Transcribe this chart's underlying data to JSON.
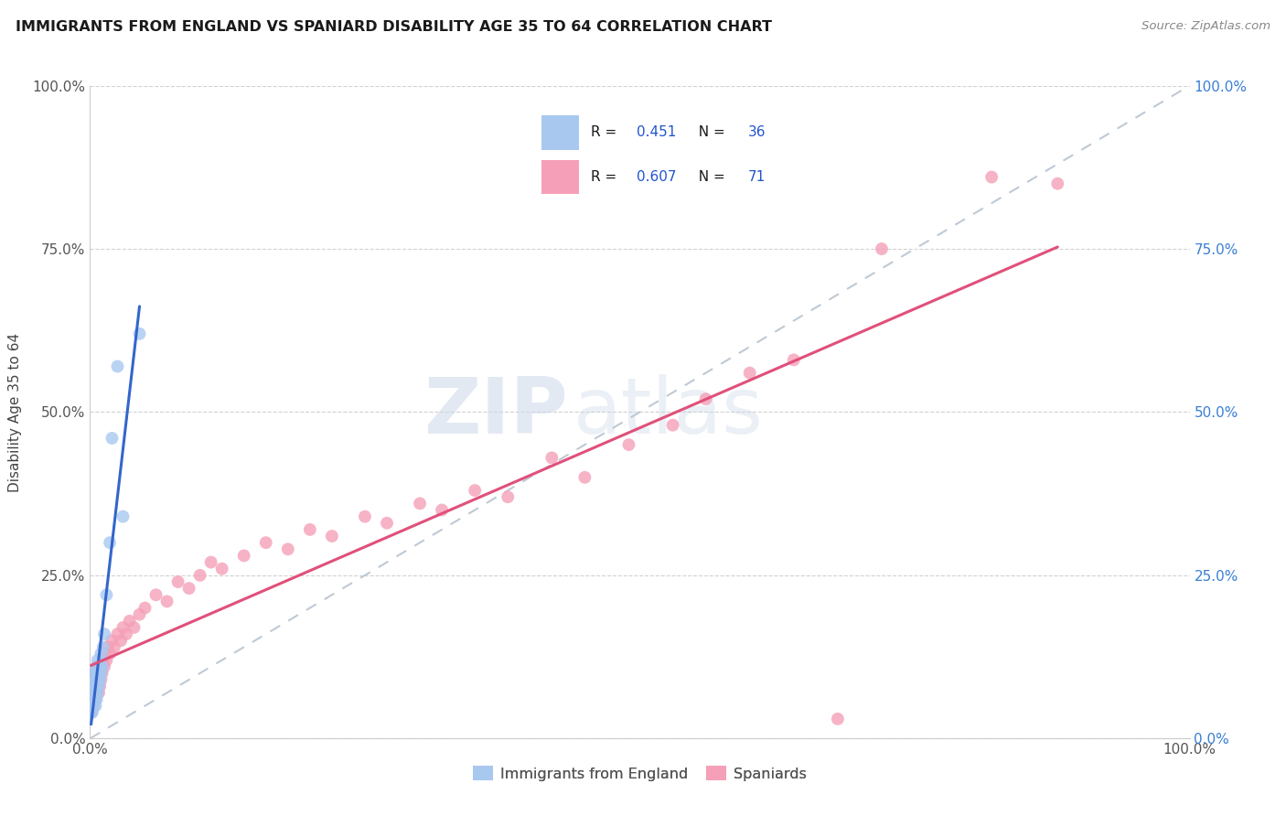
{
  "title": "IMMIGRANTS FROM ENGLAND VS SPANIARD DISABILITY AGE 35 TO 64 CORRELATION CHART",
  "source": "Source: ZipAtlas.com",
  "ylabel": "Disability Age 35 to 64",
  "xmin": 0.0,
  "xmax": 1.0,
  "ymin": 0.0,
  "ymax": 1.0,
  "ytick_positions": [
    0.0,
    0.25,
    0.5,
    0.75,
    1.0
  ],
  "ytick_labels": [
    "0.0%",
    "25.0%",
    "50.0%",
    "75.0%",
    "100.0%"
  ],
  "england_R": "0.451",
  "england_N": "36",
  "spaniard_R": "0.607",
  "spaniard_N": "71",
  "england_color": "#a8c8f0",
  "spaniard_color": "#f5a0b8",
  "england_line_color": "#3366cc",
  "spaniard_line_color": "#e0507a",
  "diagonal_color": "#b8c4d0",
  "watermark_zip": "ZIP",
  "watermark_atlas": "atlas",
  "legend_label_england": "Immigrants from England",
  "legend_label_spaniard": "Spaniards",
  "eng_x": [
    0.001,
    0.001,
    0.002,
    0.002,
    0.002,
    0.003,
    0.003,
    0.003,
    0.003,
    0.004,
    0.004,
    0.004,
    0.005,
    0.005,
    0.005,
    0.006,
    0.006,
    0.006,
    0.007,
    0.007,
    0.007,
    0.008,
    0.008,
    0.009,
    0.009,
    0.01,
    0.01,
    0.011,
    0.012,
    0.013,
    0.015,
    0.018,
    0.02,
    0.025,
    0.03,
    0.045
  ],
  "eng_y": [
    0.04,
    0.05,
    0.04,
    0.055,
    0.07,
    0.05,
    0.06,
    0.08,
    0.1,
    0.06,
    0.07,
    0.09,
    0.05,
    0.07,
    0.1,
    0.06,
    0.08,
    0.11,
    0.07,
    0.09,
    0.12,
    0.08,
    0.1,
    0.09,
    0.11,
    0.1,
    0.13,
    0.11,
    0.14,
    0.16,
    0.22,
    0.3,
    0.46,
    0.57,
    0.34,
    0.62
  ],
  "spa_x": [
    0.001,
    0.001,
    0.002,
    0.002,
    0.003,
    0.003,
    0.003,
    0.004,
    0.004,
    0.004,
    0.005,
    0.005,
    0.005,
    0.006,
    0.006,
    0.006,
    0.007,
    0.007,
    0.008,
    0.008,
    0.008,
    0.009,
    0.009,
    0.01,
    0.01,
    0.011,
    0.012,
    0.013,
    0.014,
    0.015,
    0.016,
    0.018,
    0.02,
    0.022,
    0.025,
    0.028,
    0.03,
    0.033,
    0.036,
    0.04,
    0.045,
    0.05,
    0.06,
    0.07,
    0.08,
    0.09,
    0.1,
    0.11,
    0.12,
    0.14,
    0.16,
    0.18,
    0.2,
    0.22,
    0.25,
    0.27,
    0.3,
    0.32,
    0.35,
    0.38,
    0.42,
    0.45,
    0.49,
    0.53,
    0.56,
    0.6,
    0.64,
    0.68,
    0.72,
    0.82,
    0.88
  ],
  "spa_y": [
    0.04,
    0.06,
    0.05,
    0.07,
    0.05,
    0.07,
    0.08,
    0.06,
    0.08,
    0.1,
    0.06,
    0.08,
    0.1,
    0.07,
    0.09,
    0.11,
    0.08,
    0.1,
    0.07,
    0.09,
    0.11,
    0.08,
    0.1,
    0.09,
    0.11,
    0.1,
    0.12,
    0.11,
    0.13,
    0.12,
    0.14,
    0.13,
    0.15,
    0.14,
    0.16,
    0.15,
    0.17,
    0.16,
    0.18,
    0.17,
    0.19,
    0.2,
    0.22,
    0.21,
    0.24,
    0.23,
    0.25,
    0.27,
    0.26,
    0.28,
    0.3,
    0.29,
    0.32,
    0.31,
    0.34,
    0.33,
    0.36,
    0.35,
    0.38,
    0.37,
    0.43,
    0.4,
    0.45,
    0.48,
    0.52,
    0.56,
    0.58,
    0.03,
    0.75,
    0.86,
    0.85
  ]
}
